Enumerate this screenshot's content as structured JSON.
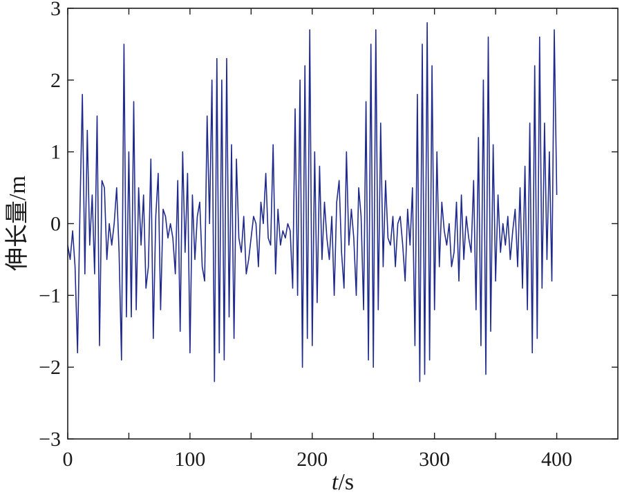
{
  "chart_data": {
    "type": "line",
    "xlabel_italic": "t",
    "xlabel_unit": "/s",
    "ylabel": "伸长量/m",
    "xlim": [
      0,
      450
    ],
    "ylim": [
      -3,
      3
    ],
    "xticks": [
      0,
      100,
      200,
      300,
      400
    ],
    "yticks": [
      -3,
      -2,
      -1,
      0,
      1,
      2,
      3
    ],
    "grid": false,
    "series_color": "#1f2a8c",
    "series": [
      {
        "x": [
          0,
          2,
          4,
          6,
          8,
          10,
          12,
          14,
          16,
          18,
          20,
          22,
          24,
          26,
          28,
          30,
          32,
          34,
          36,
          38,
          40,
          42,
          44,
          46,
          48,
          50,
          52,
          54,
          56,
          58,
          60,
          62,
          64,
          66,
          68,
          70,
          72,
          74,
          76,
          78,
          80,
          82,
          84,
          86,
          88,
          90,
          92,
          94,
          96,
          98,
          100,
          102,
          104,
          106,
          108,
          110,
          112,
          114,
          116,
          118,
          120,
          122,
          124,
          126,
          128,
          130,
          132,
          134,
          136,
          138,
          140,
          142,
          144,
          146,
          148,
          150,
          152,
          154,
          156,
          158,
          160,
          162,
          164,
          166,
          168,
          170,
          172,
          174,
          176,
          178,
          180,
          182,
          184,
          186,
          188,
          190,
          192,
          194,
          196,
          198,
          200,
          202,
          204,
          206,
          208,
          210,
          212,
          214,
          216,
          218,
          220,
          222,
          224,
          226,
          228,
          230,
          232,
          234,
          236,
          238,
          240,
          242,
          244,
          246,
          248,
          250,
          252,
          254,
          256,
          258,
          260,
          262,
          264,
          266,
          268,
          270,
          272,
          274,
          276,
          278,
          280,
          282,
          284,
          286,
          288,
          290,
          292,
          294,
          296,
          298,
          300,
          302,
          304,
          306,
          308,
          310,
          312,
          314,
          316,
          318,
          320,
          322,
          324,
          326,
          328,
          330,
          332,
          334,
          336,
          338,
          340,
          342,
          344,
          346,
          348,
          350,
          352,
          354,
          356,
          358,
          360,
          362,
          364,
          366,
          368,
          370,
          372,
          374,
          376,
          378,
          380,
          382,
          384,
          386,
          388,
          390,
          392,
          394,
          396,
          398,
          400
        ],
        "values": [
          -0.3,
          -0.5,
          -0.1,
          -0.6,
          -1.8,
          0.2,
          1.8,
          -0.7,
          1.3,
          -0.3,
          0.4,
          -0.7,
          1.5,
          -1.7,
          0.6,
          0.5,
          -0.5,
          0.0,
          -0.3,
          0.0,
          0.5,
          -0.4,
          -1.9,
          2.5,
          -1.3,
          1.0,
          -1.3,
          1.7,
          -1.2,
          0.5,
          -0.3,
          0.4,
          -0.9,
          -0.6,
          0.9,
          -1.6,
          0.1,
          0.7,
          -1.2,
          0.2,
          0.1,
          -0.2,
          0.0,
          -0.2,
          -0.7,
          0.6,
          -1.5,
          1.0,
          -0.4,
          0.7,
          -1.8,
          0.4,
          -0.5,
          0.1,
          0.3,
          -0.6,
          -0.8,
          1.5,
          0.0,
          2.0,
          -2.2,
          2.3,
          -1.8,
          2.0,
          -1.9,
          2.3,
          -1.3,
          1.1,
          -1.6,
          0.9,
          -0.2,
          -0.4,
          0.1,
          -0.7,
          -0.5,
          -0.2,
          0.1,
          0.0,
          -0.6,
          0.3,
          0.0,
          0.7,
          -0.2,
          -0.3,
          1.1,
          -0.7,
          0.2,
          -0.3,
          -0.1,
          -0.2,
          0.0,
          -0.1,
          -0.9,
          1.6,
          -1.0,
          2.0,
          -2.0,
          2.2,
          -1.6,
          2.7,
          -1.7,
          1.0,
          -1.1,
          0.8,
          -0.5,
          0.3,
          -0.2,
          -0.5,
          0.1,
          -1.0,
          0.3,
          0.6,
          -0.4,
          -0.9,
          1.0,
          -0.3,
          0.2,
          -0.2,
          -1.0,
          0.5,
          0.1,
          -1.2,
          1.7,
          -1.9,
          2.5,
          -2.0,
          2.7,
          -1.2,
          1.4,
          -0.6,
          0.6,
          -0.2,
          -0.3,
          0.1,
          -0.6,
          0.0,
          0.1,
          -0.3,
          -0.8,
          0.2,
          -0.3,
          0.5,
          -1.7,
          1.8,
          -2.2,
          2.5,
          -2.1,
          2.8,
          -1.9,
          2.2,
          -1.2,
          1.0,
          -0.6,
          0.3,
          -0.1,
          -0.3,
          0.0,
          -0.6,
          -0.4,
          0.3,
          -0.8,
          0.4,
          -0.5,
          0.1,
          -0.2,
          -0.4,
          0.6,
          -1.2,
          1.2,
          -1.7,
          2.0,
          -2.1,
          2.6,
          -1.5,
          1.1,
          -0.8,
          0.4,
          -0.4,
          0.0,
          -0.3,
          0.1,
          -0.5,
          -0.1,
          0.2,
          -0.6,
          0.5,
          -0.9,
          0.8,
          -1.2,
          1.4,
          -1.8,
          2.2,
          -1.6,
          2.6,
          -0.9,
          1.4,
          -0.5,
          1.0,
          -0.8,
          2.7,
          0.4
        ]
      }
    ]
  }
}
